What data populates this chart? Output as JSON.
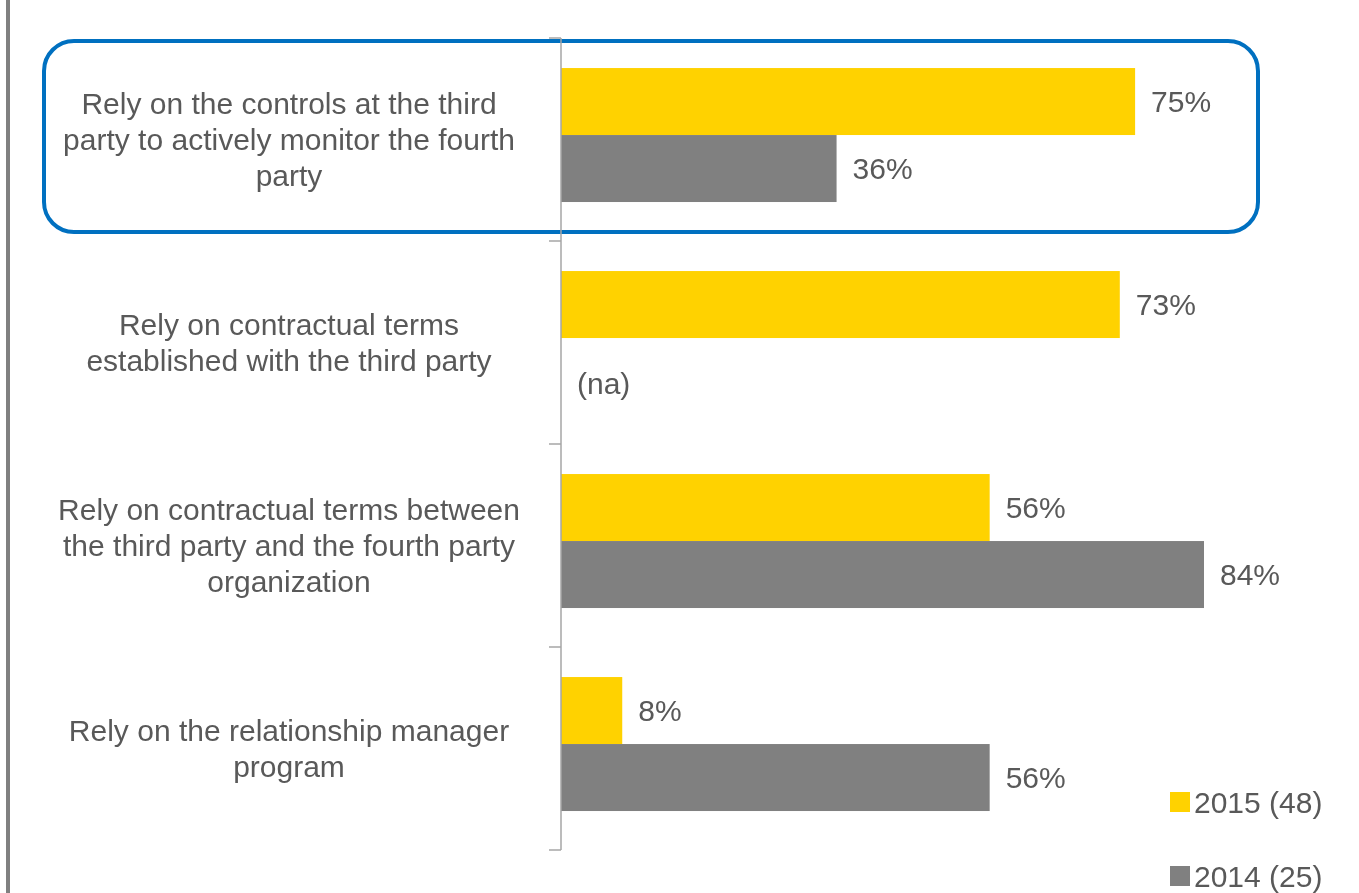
{
  "chart_data": {
    "type": "bar",
    "orientation": "horizontal",
    "categories": [
      "Rely on the controls at the third party to actively monitor the fourth party",
      "Rely on contractual terms established with the third party",
      "Rely on contractual terms between the third party and the fourth party organization",
      "Rely on the relationship manager program"
    ],
    "series": [
      {
        "name": "2015 (48)",
        "color": "#ffd200",
        "values": [
          75,
          73,
          56,
          8
        ],
        "value_labels": [
          "75%",
          "73%",
          "56%",
          "8%"
        ]
      },
      {
        "name": "2014 (25)",
        "color": "#808080",
        "values": [
          36,
          null,
          84,
          56
        ],
        "value_labels": [
          "36%",
          "(na)",
          "84%",
          "56%"
        ]
      }
    ],
    "legend": "bottom right"
  }
}
